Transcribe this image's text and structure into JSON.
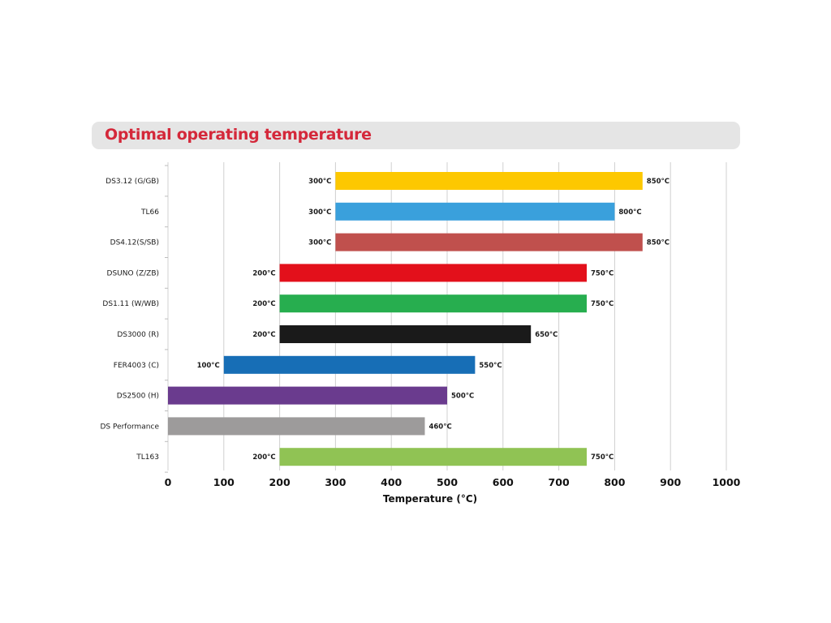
{
  "title": "Optimal operating temperature",
  "colors": {
    "title": "#d4283a",
    "title_bg": "#e5e5e5",
    "grid": "#d0d0d0"
  },
  "chart_data": {
    "type": "bar",
    "orientation": "horizontal",
    "subtype": "floating-range",
    "title": "Optimal operating temperature",
    "xlabel": "Temperature (°C)",
    "ylabel": "",
    "xlim": [
      0,
      1000
    ],
    "xticks": [
      0,
      100,
      200,
      300,
      400,
      500,
      600,
      700,
      800,
      900,
      1000
    ],
    "grid": true,
    "categories": [
      "DS3.12 (G/GB)",
      "TL66",
      "DS4.12(S/SB)",
      "DSUNO (Z/ZB)",
      "DS1.11 (W/WB)",
      "DS3000 (R)",
      "FER4003 (C)",
      "DS2500 (H)",
      "DS Performance",
      "TL163"
    ],
    "bars": [
      {
        "category": "DS3.12 (G/GB)",
        "start": 300,
        "end": 850,
        "start_label": "300°C",
        "end_label": "850°C",
        "color": "#fdc800"
      },
      {
        "category": "TL66",
        "start": 300,
        "end": 800,
        "start_label": "300°C",
        "end_label": "800°C",
        "color": "#3aa0dc"
      },
      {
        "category": "DS4.12(S/SB)",
        "start": 300,
        "end": 850,
        "start_label": "300°C",
        "end_label": "850°C",
        "color": "#c0504d"
      },
      {
        "category": "DSUNO (Z/ZB)",
        "start": 200,
        "end": 750,
        "start_label": "200°C",
        "end_label": "750°C",
        "color": "#e3101b"
      },
      {
        "category": "DS1.11 (W/WB)",
        "start": 200,
        "end": 750,
        "start_label": "200°C",
        "end_label": "750°C",
        "color": "#27ae4f"
      },
      {
        "category": "DS3000 (R)",
        "start": 200,
        "end": 650,
        "start_label": "200°C",
        "end_label": "650°C",
        "color": "#1a1a1a"
      },
      {
        "category": "FER4003 (C)",
        "start": 100,
        "end": 550,
        "start_label": "100°C",
        "end_label": "550°C",
        "color": "#176eb6"
      },
      {
        "category": "DS2500 (H)",
        "start": 0,
        "end": 500,
        "start_label": "",
        "end_label": "500°C",
        "color": "#6a3b8e"
      },
      {
        "category": "DS Performance",
        "start": 0,
        "end": 460,
        "start_label": "",
        "end_label": "460°C",
        "color": "#9d9b9b"
      },
      {
        "category": "TL163",
        "start": 200,
        "end": 750,
        "start_label": "200°C",
        "end_label": "750°C",
        "color": "#90c354"
      }
    ]
  }
}
